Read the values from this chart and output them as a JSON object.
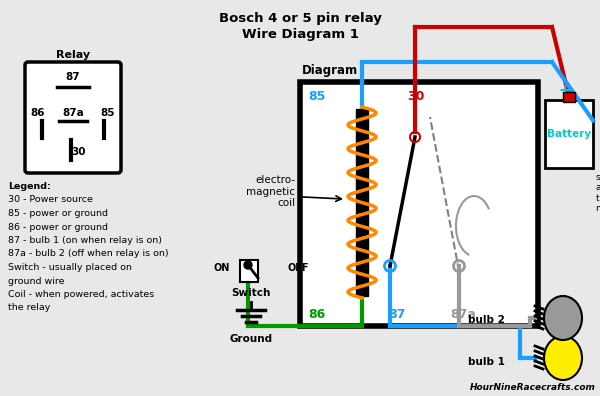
{
  "title1": "Bosch 4 or 5 pin relay",
  "title2": "Wire Diagram 1",
  "bg_color": "#e8e8e8",
  "color_blue": "#1a9fff",
  "color_red": "#cc0000",
  "color_green": "#009900",
  "color_orange": "#ff8800",
  "color_gray": "#999999",
  "color_cyan": "#00cccc",
  "color_black": "#000000",
  "color_yellow": "#ffee00",
  "watermark": "HourNineRacecrafts.com",
  "legend_lines": [
    [
      "Legend:",
      true
    ],
    [
      "30 - Power source",
      false
    ],
    [
      "85 - power or ground",
      false
    ],
    [
      "86 - power or ground",
      false
    ],
    [
      "87 - bulb 1 (on when relay is on)",
      false
    ],
    [
      "87a - bulb 2 (off when relay is on)",
      false
    ],
    [
      "Switch - usually placed on",
      false
    ],
    [
      "ground wire",
      false
    ],
    [
      "Coil - when powered, activates",
      false
    ],
    [
      "the relay",
      false
    ]
  ]
}
